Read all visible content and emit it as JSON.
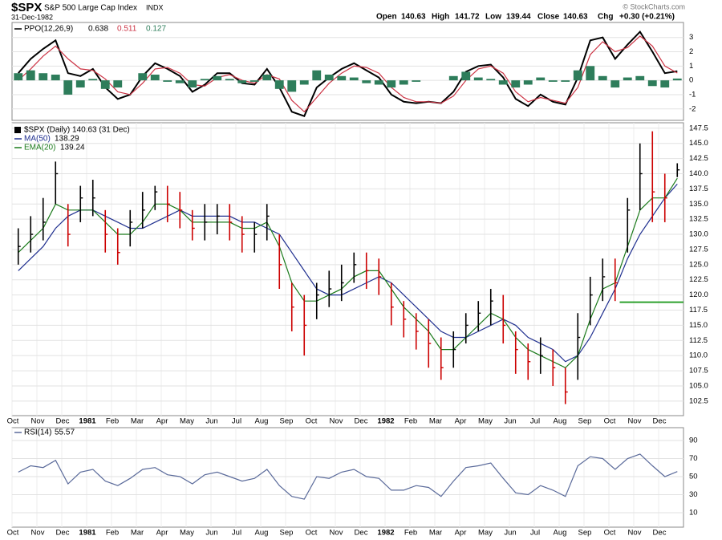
{
  "header": {
    "symbol": "$SPX",
    "name": "S&P 500 Large Cap Index",
    "exchange": "INDX",
    "date": "31-Dec-1982",
    "copyright": "© StockCharts.com",
    "quote": [
      {
        "label": "Open",
        "value": 140.63
      },
      {
        "label": "High",
        "value": 141.72
      },
      {
        "label": "Low",
        "value": 139.44
      },
      {
        "label": "Close",
        "value": 140.63
      },
      {
        "label": "Chg",
        "value": "+0.30 (+0.21%)"
      }
    ]
  },
  "chart_data": [
    {
      "type": "ppo",
      "title": "PPO(12,26,9)",
      "ylim": [
        -2.8,
        4.05
      ],
      "yticks": [
        -2,
        -1,
        0,
        1,
        2,
        3
      ],
      "series": [
        {
          "color": "#000000",
          "values": [
            0.5,
            1.5,
            2.2,
            2.8,
            0.5,
            0.3,
            0.8,
            -0.5,
            -1.3,
            -1.0,
            0.3,
            1.2,
            0.8,
            0.3,
            -0.8,
            -0.3,
            0.5,
            0.5,
            -0.2,
            -0.3,
            0.8,
            -0.5,
            -2.2,
            -2.5,
            -0.5,
            0.2,
            0.8,
            1.2,
            0.7,
            0.2,
            -1.0,
            -1.5,
            -1.6,
            -1.5,
            -1.6,
            -0.8,
            0.6,
            1.0,
            1.1,
            0.2,
            -1.3,
            -1.8,
            -1.0,
            -1.5,
            -1.7,
            0.2,
            2.8,
            3.0,
            1.5,
            2.5,
            3.4,
            2.0,
            0.5,
            0.638
          ]
        },
        {
          "color": "#cc3344",
          "values": [
            0.0,
            0.8,
            1.7,
            2.4,
            1.5,
            0.8,
            0.7,
            0.1,
            -0.8,
            -1.0,
            -0.2,
            0.8,
            0.9,
            0.5,
            -0.3,
            -0.4,
            0.2,
            0.4,
            0.0,
            -0.2,
            0.4,
            0.1,
            -1.4,
            -2.2,
            -1.2,
            -0.2,
            0.5,
            1.0,
            0.9,
            0.5,
            -0.5,
            -1.2,
            -1.5,
            -1.5,
            -1.6,
            -1.1,
            0.0,
            0.8,
            1.0,
            0.5,
            -0.8,
            -1.5,
            -1.2,
            -1.4,
            -1.6,
            -0.5,
            1.8,
            2.7,
            2.0,
            2.3,
            3.1,
            2.4,
            1.0,
            0.511
          ]
        },
        {
          "color": "#2e7d5b",
          "bars": true,
          "values": [
            0.5,
            0.7,
            0.5,
            0.4,
            -1.0,
            -0.5,
            0.1,
            -0.6,
            -0.5,
            0.0,
            0.5,
            0.4,
            -0.1,
            -0.2,
            -0.5,
            0.1,
            0.3,
            0.1,
            -0.2,
            -0.1,
            0.4,
            -0.6,
            -0.8,
            -0.3,
            0.7,
            0.4,
            0.3,
            0.2,
            -0.2,
            -0.3,
            -0.5,
            -0.3,
            -0.1,
            0.0,
            0.0,
            0.3,
            0.6,
            0.2,
            0.1,
            -0.3,
            -0.5,
            -0.3,
            0.2,
            -0.1,
            -0.1,
            0.7,
            1.0,
            0.3,
            -0.5,
            0.2,
            0.3,
            -0.4,
            -0.5,
            0.127
          ]
        }
      ]
    },
    {
      "type": "ohlc",
      "title": "$SPX (Daily) 140.63 (31 Dec)",
      "categories": [
        "Oct",
        null,
        "Nov",
        null,
        "Dec",
        null,
        "1981",
        null,
        "Feb",
        null,
        "Mar",
        null,
        "Apr",
        null,
        "May",
        null,
        "Jun",
        null,
        "Jul",
        null,
        "Aug",
        null,
        "Sep",
        null,
        "Oct",
        null,
        "Nov",
        null,
        "Dec",
        null,
        "1982",
        null,
        "Feb",
        null,
        "Mar",
        null,
        "Apr",
        null,
        "May",
        null,
        "Jun",
        null,
        "Jul",
        null,
        "Aug",
        null,
        "Sep",
        null,
        "Oct",
        null,
        "Nov",
        null,
        "Dec",
        null
      ],
      "high": [
        131,
        133,
        136,
        142,
        135,
        138,
        139,
        134,
        131,
        134,
        137,
        138,
        138,
        137,
        134,
        135,
        135,
        135,
        133,
        132,
        135,
        130,
        122,
        120,
        122,
        124,
        125,
        127,
        127,
        126,
        122,
        119,
        117,
        116,
        113,
        114,
        117,
        119,
        121,
        120,
        114,
        112,
        113,
        111,
        108,
        117,
        123,
        126,
        126,
        136,
        145,
        147,
        140,
        141.72
      ],
      "low": [
        125,
        127,
        129,
        135,
        128,
        132,
        133,
        127,
        125,
        128,
        131,
        134,
        132,
        131,
        129,
        129,
        130,
        129,
        127,
        127,
        129,
        121,
        114,
        110,
        116,
        118,
        119,
        122,
        121,
        120,
        115,
        113,
        111,
        108,
        106,
        108,
        112,
        114,
        115,
        112,
        107,
        106,
        107,
        105,
        102,
        106,
        115,
        119,
        119,
        127,
        134,
        132,
        132,
        139.44
      ],
      "close": [
        128,
        130,
        132,
        140,
        130,
        136,
        136,
        130,
        127,
        132,
        134,
        137,
        135,
        134,
        131,
        132,
        133,
        132,
        130,
        130,
        133,
        125,
        118,
        115,
        120,
        121,
        122,
        125,
        124,
        123,
        118,
        116,
        114,
        112,
        108,
        111,
        115,
        117,
        119,
        115,
        111,
        109,
        110,
        108,
        104,
        113,
        120,
        123,
        122,
        134,
        140,
        137,
        136,
        140.63
      ],
      "up_color": "#000000",
      "down_color": "#cc0000",
      "overlays": [
        {
          "name": "MA(50)",
          "color": "#1f2f8f",
          "values": [
            124,
            126,
            128,
            131,
            133,
            134,
            134,
            133,
            132,
            131,
            131,
            132,
            133,
            134,
            133,
            133,
            133,
            133,
            132,
            132,
            131,
            130,
            127,
            124,
            121,
            120,
            120,
            121,
            122,
            123,
            122,
            120,
            118,
            116,
            114,
            113,
            113,
            114,
            115,
            116,
            115,
            113,
            112,
            111,
            109,
            110,
            113,
            117,
            121,
            126,
            130,
            133,
            136,
            138.29
          ]
        },
        {
          "name": "EMA(20)",
          "color": "#1a7a1a",
          "values": [
            127,
            129,
            131,
            135,
            134,
            134,
            134,
            132,
            130,
            130,
            132,
            135,
            135,
            134,
            132,
            132,
            132,
            132,
            131,
            131,
            132,
            128,
            122,
            119,
            119,
            120,
            121,
            123,
            124,
            124,
            121,
            118,
            116,
            114,
            111,
            111,
            113,
            115,
            117,
            116,
            113,
            111,
            110,
            109,
            108,
            110,
            116,
            121,
            122,
            128,
            134,
            136,
            136,
            139.24
          ]
        }
      ],
      "level": {
        "value": 118.8,
        "color": "#2ca02c"
      },
      "ylim": [
        100.1,
        148.4
      ],
      "yticks": [
        102.5,
        {
          "value": 105,
          "label": "105.0"
        },
        107.5,
        {
          "value": 110,
          "label": "110.0"
        },
        112.5,
        {
          "value": 115,
          "label": "115.0"
        },
        117.5,
        {
          "value": 120,
          "label": "120.0"
        },
        122.5,
        {
          "value": 125,
          "label": "125.0"
        },
        127.5,
        {
          "value": 130,
          "label": "130.0"
        },
        132.5,
        {
          "value": 135,
          "label": "135.0"
        },
        137.5,
        {
          "value": 140,
          "label": "140.0"
        },
        142.5,
        {
          "value": 145,
          "label": "145.0"
        },
        147.5
      ]
    },
    {
      "type": "rsi",
      "title": "RSI(14)",
      "color": "#5a6a9a",
      "categories": [
        "Oct",
        null,
        "Nov",
        null,
        "Dec",
        null,
        "1981",
        null,
        "Feb",
        null,
        "Mar",
        null,
        "Apr",
        null,
        "May",
        null,
        "Jun",
        null,
        "Jul",
        null,
        "Aug",
        null,
        "Sep",
        null,
        "Oct",
        null,
        "Nov",
        null,
        "Dec",
        null,
        "1982",
        null,
        "Feb",
        null,
        "Mar",
        null,
        "Apr",
        null,
        "May",
        null,
        "Jun",
        null,
        "Jul",
        null,
        "Aug",
        null,
        "Sep",
        null,
        "Oct",
        null,
        "Nov",
        null,
        "Dec",
        null
      ],
      "values": [
        55,
        62,
        60,
        68,
        42,
        55,
        58,
        45,
        40,
        48,
        58,
        60,
        52,
        50,
        42,
        52,
        55,
        50,
        45,
        48,
        58,
        40,
        28,
        25,
        50,
        48,
        55,
        58,
        50,
        48,
        35,
        35,
        40,
        38,
        28,
        45,
        60,
        62,
        65,
        48,
        32,
        30,
        40,
        35,
        28,
        62,
        72,
        70,
        58,
        70,
        75,
        62,
        50,
        55.57
      ],
      "ylim": [
        -6,
        104.2
      ],
      "yticks": [
        10,
        30,
        50,
        70,
        90
      ]
    }
  ]
}
